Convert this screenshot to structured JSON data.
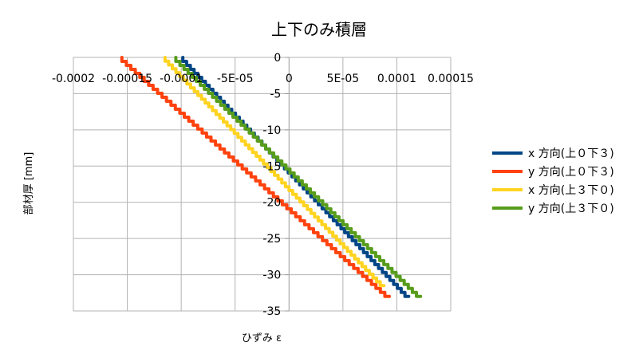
{
  "chart_data": {
    "type": "line",
    "title": "上下のみ積層",
    "xlabel": "ひずみ ε",
    "ylabel": "部材厚 [mm]",
    "xlim": [
      -0.0002,
      0.00015
    ],
    "ylim": [
      -35,
      0
    ],
    "x_ticks": [
      -0.0002,
      -0.00015,
      -0.0001,
      -5e-05,
      0,
      5e-05,
      0.0001,
      0.00015
    ],
    "x_tick_labels": [
      "-0.0002",
      "-0.00015",
      "-0.0001",
      "-5E-05",
      "0",
      "5E-05",
      "0.0001",
      "0.00015"
    ],
    "y_ticks": [
      0,
      -5,
      -10,
      -15,
      -20,
      -25,
      -30,
      -35
    ],
    "y_tick_labels": [
      "0",
      "-5",
      "-10",
      "-15",
      "-20",
      "-25",
      "-30",
      "-35"
    ],
    "grid": true,
    "legend_position": "right",
    "series": [
      {
        "name": "x 方向(上０下３)",
        "color": "#004586",
        "x_start": -9.85e-05,
        "x_end": 0.000111,
        "y_start": 0,
        "y_end": -33
      },
      {
        "name": "y 方向(上０下３)",
        "color": "#ff420e",
        "x_start": -0.000155,
        "x_end": 9.3e-05,
        "y_start": 0,
        "y_end": -33
      },
      {
        "name": "x 方向(上３下０)",
        "color": "#ffd320",
        "x_start": -0.000115,
        "x_end": 8.8e-05,
        "y_start": 0,
        "y_end": -31.5
      },
      {
        "name": "y 方向(上３下０)",
        "color": "#579d1c",
        "x_start": -0.000105,
        "x_end": 0.000122,
        "y_start": 0,
        "y_end": -33
      }
    ]
  }
}
